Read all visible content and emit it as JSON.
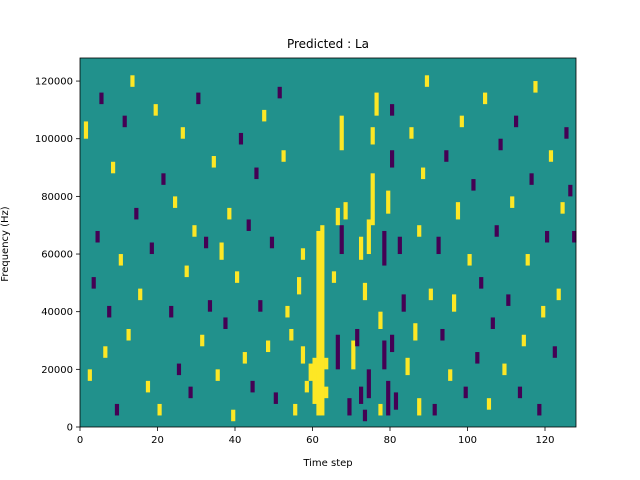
{
  "chart_data": {
    "type": "heatmap",
    "title": "Predicted : La",
    "xlabel": "Time step",
    "ylabel": "Frequency (Hz)",
    "xlim": [
      0,
      128
    ],
    "ylim": [
      0,
      128000
    ],
    "x_ticks": [
      0,
      20,
      40,
      60,
      80,
      100,
      120
    ],
    "y_ticks": [
      0,
      20000,
      40000,
      60000,
      80000,
      100000,
      120000
    ],
    "colors": {
      "background": "#21918c",
      "high": "#fde725",
      "low": "#440154"
    },
    "grid": false,
    "legend": "none",
    "columns": 128,
    "rows": 128,
    "cells": [
      {
        "t": 61,
        "f0": 4000,
        "f1": 68000,
        "v": "high"
      },
      {
        "t": 62,
        "f0": 4000,
        "f1": 70000,
        "v": "high"
      },
      {
        "t": 60,
        "f0": 8000,
        "f1": 24000,
        "v": "high"
      },
      {
        "t": 59,
        "f0": 16000,
        "f1": 22000,
        "v": "high"
      },
      {
        "t": 58,
        "f0": 12000,
        "f1": 16000,
        "v": "high"
      },
      {
        "t": 57,
        "f0": 22000,
        "f1": 28000,
        "v": "high"
      },
      {
        "t": 56,
        "f0": 46000,
        "f1": 52000,
        "v": "high"
      },
      {
        "t": 55,
        "f0": 4000,
        "f1": 8000,
        "v": "high"
      },
      {
        "t": 54,
        "f0": 30000,
        "f1": 34000,
        "v": "high"
      },
      {
        "t": 53,
        "f0": 38000,
        "f1": 42000,
        "v": "high"
      },
      {
        "t": 57,
        "f0": 58000,
        "f1": 62000,
        "v": "high"
      },
      {
        "t": 63,
        "f0": 10000,
        "f1": 14000,
        "v": "high"
      },
      {
        "t": 63,
        "f0": 20000,
        "f1": 24000,
        "v": "high"
      },
      {
        "t": 66,
        "f0": 20000,
        "f1": 32000,
        "v": "low"
      },
      {
        "t": 67,
        "f0": 60000,
        "f1": 70000,
        "v": "low"
      },
      {
        "t": 65,
        "f0": 50000,
        "f1": 54000,
        "v": "high"
      },
      {
        "t": 66,
        "f0": 70000,
        "f1": 76000,
        "v": "high"
      },
      {
        "t": 68,
        "f0": 72000,
        "f1": 78000,
        "v": "high"
      },
      {
        "t": 67,
        "f0": 96000,
        "f1": 108000,
        "v": "high"
      },
      {
        "t": 69,
        "f0": 4000,
        "f1": 10000,
        "v": "low"
      },
      {
        "t": 70,
        "f0": 20000,
        "f1": 30000,
        "v": "high"
      },
      {
        "t": 71,
        "f0": 28000,
        "f1": 34000,
        "v": "low"
      },
      {
        "t": 72,
        "f0": 8000,
        "f1": 14000,
        "v": "low"
      },
      {
        "t": 72,
        "f0": 58000,
        "f1": 66000,
        "v": "high"
      },
      {
        "t": 73,
        "f0": 2000,
        "f1": 6000,
        "v": "low"
      },
      {
        "t": 73,
        "f0": 44000,
        "f1": 50000,
        "v": "high"
      },
      {
        "t": 74,
        "f0": 60000,
        "f1": 72000,
        "v": "high"
      },
      {
        "t": 74,
        "f0": 10000,
        "f1": 20000,
        "v": "low"
      },
      {
        "t": 75,
        "f0": 70000,
        "f1": 88000,
        "v": "high"
      },
      {
        "t": 75,
        "f0": 98000,
        "f1": 104000,
        "v": "high"
      },
      {
        "t": 76,
        "f0": 108000,
        "f1": 116000,
        "v": "high"
      },
      {
        "t": 77,
        "f0": 4000,
        "f1": 8000,
        "v": "high"
      },
      {
        "t": 77,
        "f0": 34000,
        "f1": 40000,
        "v": "high"
      },
      {
        "t": 78,
        "f0": 56000,
        "f1": 68000,
        "v": "low"
      },
      {
        "t": 78,
        "f0": 20000,
        "f1": 30000,
        "v": "low"
      },
      {
        "t": 79,
        "f0": 74000,
        "f1": 82000,
        "v": "high"
      },
      {
        "t": 79,
        "f0": 4000,
        "f1": 16000,
        "v": "low"
      },
      {
        "t": 80,
        "f0": 26000,
        "f1": 32000,
        "v": "low"
      },
      {
        "t": 80,
        "f0": 90000,
        "f1": 96000,
        "v": "low"
      },
      {
        "t": 80,
        "f0": 108000,
        "f1": 112000,
        "v": "low"
      },
      {
        "t": 81,
        "f0": 6000,
        "f1": 12000,
        "v": "low"
      },
      {
        "t": 82,
        "f0": 60000,
        "f1": 66000,
        "v": "low"
      },
      {
        "t": 83,
        "f0": 40000,
        "f1": 46000,
        "v": "low"
      },
      {
        "t": 84,
        "f0": 18000,
        "f1": 24000,
        "v": "high"
      },
      {
        "t": 85,
        "f0": 100000,
        "f1": 104000,
        "v": "high"
      },
      {
        "t": 86,
        "f0": 30000,
        "f1": 36000,
        "v": "high"
      },
      {
        "t": 87,
        "f0": 4000,
        "f1": 10000,
        "v": "high"
      },
      {
        "t": 87,
        "f0": 66000,
        "f1": 70000,
        "v": "high"
      },
      {
        "t": 88,
        "f0": 86000,
        "f1": 90000,
        "v": "high"
      },
      {
        "t": 89,
        "f0": 118000,
        "f1": 122000,
        "v": "high"
      },
      {
        "t": 90,
        "f0": 44000,
        "f1": 48000,
        "v": "high"
      },
      {
        "t": 91,
        "f0": 4000,
        "f1": 8000,
        "v": "low"
      },
      {
        "t": 92,
        "f0": 60000,
        "f1": 66000,
        "v": "low"
      },
      {
        "t": 93,
        "f0": 30000,
        "f1": 34000,
        "v": "low"
      },
      {
        "t": 94,
        "f0": 92000,
        "f1": 96000,
        "v": "low"
      },
      {
        "t": 95,
        "f0": 16000,
        "f1": 20000,
        "v": "high"
      },
      {
        "t": 96,
        "f0": 40000,
        "f1": 46000,
        "v": "high"
      },
      {
        "t": 97,
        "f0": 72000,
        "f1": 78000,
        "v": "high"
      },
      {
        "t": 98,
        "f0": 104000,
        "f1": 108000,
        "v": "high"
      },
      {
        "t": 99,
        "f0": 10000,
        "f1": 14000,
        "v": "low"
      },
      {
        "t": 100,
        "f0": 56000,
        "f1": 60000,
        "v": "high"
      },
      {
        "t": 101,
        "f0": 82000,
        "f1": 86000,
        "v": "low"
      },
      {
        "t": 102,
        "f0": 22000,
        "f1": 26000,
        "v": "low"
      },
      {
        "t": 103,
        "f0": 48000,
        "f1": 52000,
        "v": "low"
      },
      {
        "t": 104,
        "f0": 112000,
        "f1": 116000,
        "v": "high"
      },
      {
        "t": 105,
        "f0": 6000,
        "f1": 10000,
        "v": "high"
      },
      {
        "t": 106,
        "f0": 34000,
        "f1": 38000,
        "v": "low"
      },
      {
        "t": 107,
        "f0": 66000,
        "f1": 70000,
        "v": "low"
      },
      {
        "t": 108,
        "f0": 96000,
        "f1": 100000,
        "v": "low"
      },
      {
        "t": 109,
        "f0": 18000,
        "f1": 22000,
        "v": "high"
      },
      {
        "t": 110,
        "f0": 42000,
        "f1": 46000,
        "v": "low"
      },
      {
        "t": 111,
        "f0": 76000,
        "f1": 80000,
        "v": "high"
      },
      {
        "t": 112,
        "f0": 104000,
        "f1": 108000,
        "v": "low"
      },
      {
        "t": 113,
        "f0": 10000,
        "f1": 14000,
        "v": "low"
      },
      {
        "t": 114,
        "f0": 28000,
        "f1": 32000,
        "v": "high"
      },
      {
        "t": 115,
        "f0": 56000,
        "f1": 60000,
        "v": "high"
      },
      {
        "t": 116,
        "f0": 84000,
        "f1": 88000,
        "v": "low"
      },
      {
        "t": 117,
        "f0": 116000,
        "f1": 120000,
        "v": "high"
      },
      {
        "t": 118,
        "f0": 4000,
        "f1": 8000,
        "v": "low"
      },
      {
        "t": 119,
        "f0": 38000,
        "f1": 42000,
        "v": "high"
      },
      {
        "t": 120,
        "f0": 64000,
        "f1": 68000,
        "v": "low"
      },
      {
        "t": 121,
        "f0": 92000,
        "f1": 96000,
        "v": "high"
      },
      {
        "t": 122,
        "f0": 24000,
        "f1": 28000,
        "v": "low"
      },
      {
        "t": 123,
        "f0": 44000,
        "f1": 48000,
        "v": "high"
      },
      {
        "t": 124,
        "f0": 74000,
        "f1": 78000,
        "v": "high"
      },
      {
        "t": 125,
        "f0": 100000,
        "f1": 104000,
        "v": "low"
      },
      {
        "t": 126,
        "f0": 80000,
        "f1": 84000,
        "v": "low"
      },
      {
        "t": 127,
        "f0": 64000,
        "f1": 68000,
        "v": "low"
      },
      {
        "t": 1,
        "f0": 100000,
        "f1": 106000,
        "v": "high"
      },
      {
        "t": 2,
        "f0": 16000,
        "f1": 20000,
        "v": "high"
      },
      {
        "t": 3,
        "f0": 48000,
        "f1": 52000,
        "v": "low"
      },
      {
        "t": 4,
        "f0": 64000,
        "f1": 68000,
        "v": "low"
      },
      {
        "t": 5,
        "f0": 112000,
        "f1": 116000,
        "v": "low"
      },
      {
        "t": 6,
        "f0": 24000,
        "f1": 28000,
        "v": "high"
      },
      {
        "t": 7,
        "f0": 38000,
        "f1": 42000,
        "v": "low"
      },
      {
        "t": 8,
        "f0": 88000,
        "f1": 92000,
        "v": "high"
      },
      {
        "t": 9,
        "f0": 4000,
        "f1": 8000,
        "v": "low"
      },
      {
        "t": 10,
        "f0": 56000,
        "f1": 60000,
        "v": "high"
      },
      {
        "t": 11,
        "f0": 104000,
        "f1": 108000,
        "v": "low"
      },
      {
        "t": 12,
        "f0": 30000,
        "f1": 34000,
        "v": "high"
      },
      {
        "t": 13,
        "f0": 118000,
        "f1": 122000,
        "v": "high"
      },
      {
        "t": 14,
        "f0": 72000,
        "f1": 76000,
        "v": "low"
      },
      {
        "t": 15,
        "f0": 44000,
        "f1": 48000,
        "v": "high"
      },
      {
        "t": 17,
        "f0": 12000,
        "f1": 16000,
        "v": "high"
      },
      {
        "t": 18,
        "f0": 60000,
        "f1": 64000,
        "v": "low"
      },
      {
        "t": 19,
        "f0": 108000,
        "f1": 112000,
        "v": "high"
      },
      {
        "t": 20,
        "f0": 4000,
        "f1": 8000,
        "v": "high"
      },
      {
        "t": 21,
        "f0": 84000,
        "f1": 88000,
        "v": "low"
      },
      {
        "t": 23,
        "f0": 38000,
        "f1": 42000,
        "v": "low"
      },
      {
        "t": 24,
        "f0": 76000,
        "f1": 80000,
        "v": "high"
      },
      {
        "t": 25,
        "f0": 18000,
        "f1": 22000,
        "v": "low"
      },
      {
        "t": 26,
        "f0": 100000,
        "f1": 104000,
        "v": "high"
      },
      {
        "t": 27,
        "f0": 52000,
        "f1": 56000,
        "v": "high"
      },
      {
        "t": 28,
        "f0": 10000,
        "f1": 14000,
        "v": "low"
      },
      {
        "t": 29,
        "f0": 66000,
        "f1": 70000,
        "v": "high"
      },
      {
        "t": 30,
        "f0": 112000,
        "f1": 116000,
        "v": "low"
      },
      {
        "t": 31,
        "f0": 28000,
        "f1": 32000,
        "v": "high"
      },
      {
        "t": 32,
        "f0": 62000,
        "f1": 66000,
        "v": "low"
      },
      {
        "t": 33,
        "f0": 40000,
        "f1": 44000,
        "v": "low"
      },
      {
        "t": 34,
        "f0": 90000,
        "f1": 94000,
        "v": "high"
      },
      {
        "t": 35,
        "f0": 16000,
        "f1": 20000,
        "v": "high"
      },
      {
        "t": 36,
        "f0": 58000,
        "f1": 64000,
        "v": "high"
      },
      {
        "t": 37,
        "f0": 34000,
        "f1": 38000,
        "v": "low"
      },
      {
        "t": 38,
        "f0": 72000,
        "f1": 76000,
        "v": "high"
      },
      {
        "t": 39,
        "f0": 2000,
        "f1": 6000,
        "v": "high"
      },
      {
        "t": 40,
        "f0": 50000,
        "f1": 54000,
        "v": "high"
      },
      {
        "t": 41,
        "f0": 98000,
        "f1": 102000,
        "v": "low"
      },
      {
        "t": 42,
        "f0": 22000,
        "f1": 26000,
        "v": "high"
      },
      {
        "t": 43,
        "f0": 68000,
        "f1": 72000,
        "v": "low"
      },
      {
        "t": 44,
        "f0": 12000,
        "f1": 16000,
        "v": "low"
      },
      {
        "t": 45,
        "f0": 86000,
        "f1": 90000,
        "v": "low"
      },
      {
        "t": 46,
        "f0": 40000,
        "f1": 44000,
        "v": "low"
      },
      {
        "t": 47,
        "f0": 106000,
        "f1": 110000,
        "v": "high"
      },
      {
        "t": 48,
        "f0": 26000,
        "f1": 30000,
        "v": "high"
      },
      {
        "t": 49,
        "f0": 62000,
        "f1": 66000,
        "v": "low"
      },
      {
        "t": 50,
        "f0": 8000,
        "f1": 12000,
        "v": "low"
      },
      {
        "t": 51,
        "f0": 114000,
        "f1": 118000,
        "v": "low"
      },
      {
        "t": 52,
        "f0": 92000,
        "f1": 96000,
        "v": "high"
      }
    ]
  }
}
